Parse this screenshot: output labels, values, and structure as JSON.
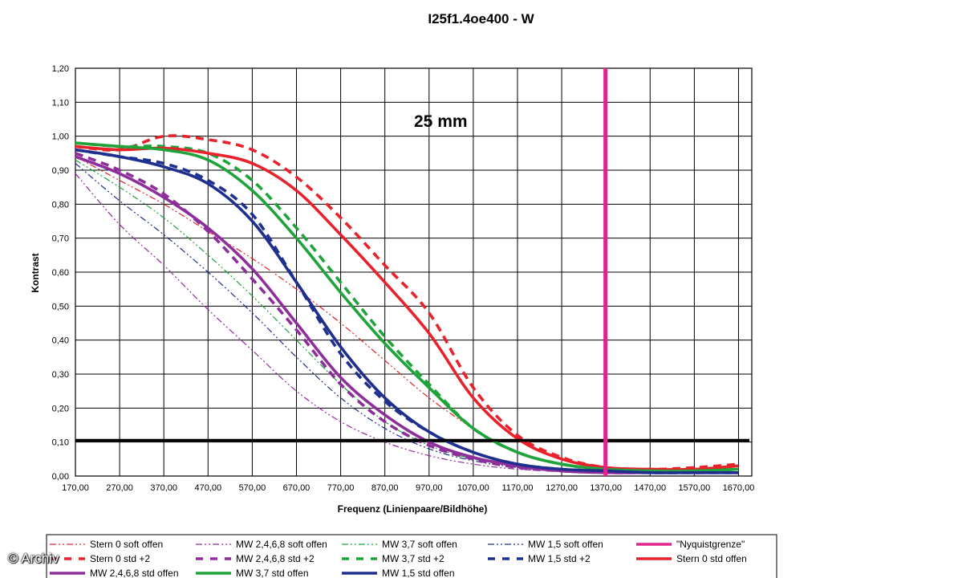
{
  "chart_data": {
    "type": "line",
    "title": "I25f1.4oe400 - W",
    "annotation": "25 mm",
    "xlabel": "Frequenz (Linienpaare/Bildhöhe)",
    "ylabel": "Kontrast",
    "xlim": [
      170,
      1700
    ],
    "ylim": [
      0,
      1.2
    ],
    "x_ticks": [
      "170,00",
      "270,00",
      "370,00",
      "470,00",
      "570,00",
      "670,00",
      "770,00",
      "870,00",
      "970,00",
      "1070,00",
      "1170,00",
      "1270,00",
      "1370,00",
      "1470,00",
      "1570,00",
      "1670,00"
    ],
    "y_ticks": [
      "0,00",
      "0,10",
      "0,20",
      "0,30",
      "0,40",
      "0,50",
      "0,60",
      "0,70",
      "0,80",
      "0,90",
      "1,00",
      "1,10",
      "1,20"
    ],
    "grid": true,
    "legend_position": "bottom",
    "threshold_line": {
      "y": 0.105,
      "color": "#000000"
    },
    "nyquist_line": {
      "name": "\"Nyquistgrenze\"",
      "x": 1369,
      "color": "#e0258c"
    },
    "series": [
      {
        "name": "Stern 0 soft offen",
        "color": "#e8212b",
        "style": "dashdotdot",
        "x": [
          170,
          270,
          370,
          470,
          570,
          670,
          770,
          870,
          970,
          1070,
          1170,
          1270,
          1370,
          1470,
          1570,
          1670
        ],
        "y": [
          0.94,
          0.87,
          0.8,
          0.72,
          0.64,
          0.55,
          0.45,
          0.34,
          0.23,
          0.14,
          0.07,
          0.035,
          0.02,
          0.015,
          0.015,
          0.02
        ]
      },
      {
        "name": "MW 2,4,6,8 soft offen",
        "color": "#8e2e9b",
        "style": "dashdotdot",
        "x": [
          170,
          270,
          370,
          470,
          570,
          670,
          770,
          870,
          970,
          1070,
          1170,
          1270,
          1370,
          1470,
          1570,
          1670
        ],
        "y": [
          0.89,
          0.74,
          0.62,
          0.49,
          0.37,
          0.25,
          0.16,
          0.1,
          0.06,
          0.035,
          0.02,
          0.015,
          0.01,
          0.01,
          0.01,
          0.01
        ]
      },
      {
        "name": "MW 3,7 soft offen",
        "color": "#1fa33a",
        "style": "dashdotdot",
        "x": [
          170,
          270,
          370,
          470,
          570,
          670,
          770,
          870,
          970,
          1070,
          1170,
          1270,
          1370,
          1470,
          1570,
          1670
        ],
        "y": [
          0.93,
          0.85,
          0.76,
          0.65,
          0.53,
          0.4,
          0.27,
          0.16,
          0.09,
          0.05,
          0.03,
          0.02,
          0.015,
          0.01,
          0.01,
          0.01
        ]
      },
      {
        "name": "MW 1,5 soft offen",
        "color": "#1f2f8e",
        "style": "dashdotdot",
        "x": [
          170,
          270,
          370,
          470,
          570,
          670,
          770,
          870,
          970,
          1070,
          1170,
          1270,
          1370,
          1470,
          1570,
          1670
        ],
        "y": [
          0.92,
          0.81,
          0.71,
          0.6,
          0.48,
          0.35,
          0.23,
          0.14,
          0.08,
          0.045,
          0.025,
          0.015,
          0.01,
          0.01,
          0.01,
          0.01
        ]
      },
      {
        "name": "Stern 0 std +2",
        "color": "#e8212b",
        "style": "dash",
        "x": [
          170,
          270,
          370,
          470,
          570,
          670,
          770,
          870,
          970,
          1070,
          1170,
          1270,
          1370,
          1470,
          1570,
          1670
        ],
        "y": [
          0.97,
          0.96,
          1.0,
          0.99,
          0.96,
          0.88,
          0.76,
          0.62,
          0.48,
          0.26,
          0.12,
          0.055,
          0.025,
          0.02,
          0.025,
          0.035
        ]
      },
      {
        "name": "MW 2,4,6,8 std +2",
        "color": "#8e2e9b",
        "style": "dash",
        "x": [
          170,
          270,
          370,
          470,
          570,
          670,
          770,
          870,
          970,
          1070,
          1170,
          1270,
          1370,
          1470,
          1570,
          1670
        ],
        "y": [
          0.95,
          0.9,
          0.83,
          0.72,
          0.58,
          0.43,
          0.27,
          0.16,
          0.09,
          0.05,
          0.025,
          0.015,
          0.01,
          0.01,
          0.01,
          0.01
        ]
      },
      {
        "name": "MW 3,7 std +2",
        "color": "#1fa33a",
        "style": "dash",
        "x": [
          170,
          270,
          370,
          470,
          570,
          670,
          770,
          870,
          970,
          1070,
          1170,
          1270,
          1370,
          1470,
          1570,
          1670
        ],
        "y": [
          0.98,
          0.97,
          0.97,
          0.95,
          0.87,
          0.73,
          0.57,
          0.41,
          0.27,
          0.14,
          0.07,
          0.035,
          0.02,
          0.015,
          0.015,
          0.02
        ]
      },
      {
        "name": "MW 1,5 std +2",
        "color": "#1f2f8e",
        "style": "dash",
        "x": [
          170,
          270,
          370,
          470,
          570,
          670,
          770,
          870,
          970,
          1070,
          1170,
          1270,
          1370,
          1470,
          1570,
          1670
        ],
        "y": [
          0.96,
          0.94,
          0.92,
          0.87,
          0.77,
          0.57,
          0.36,
          0.22,
          0.13,
          0.07,
          0.035,
          0.02,
          0.015,
          0.01,
          0.01,
          0.01
        ]
      },
      {
        "name": "Stern 0 std offen",
        "color": "#e8212b",
        "style": "solid",
        "x": [
          170,
          270,
          370,
          470,
          570,
          670,
          770,
          870,
          970,
          1070,
          1170,
          1270,
          1370,
          1470,
          1570,
          1670
        ],
        "y": [
          0.97,
          0.96,
          0.965,
          0.95,
          0.92,
          0.84,
          0.71,
          0.57,
          0.42,
          0.23,
          0.11,
          0.05,
          0.025,
          0.02,
          0.02,
          0.03
        ]
      },
      {
        "name": "MW 2,4,6,8 std offen",
        "color": "#8e2e9b",
        "style": "solid",
        "x": [
          170,
          270,
          370,
          470,
          570,
          670,
          770,
          870,
          970,
          1070,
          1170,
          1270,
          1370,
          1470,
          1570,
          1670
        ],
        "y": [
          0.94,
          0.89,
          0.82,
          0.73,
          0.61,
          0.45,
          0.29,
          0.18,
          0.1,
          0.055,
          0.03,
          0.015,
          0.01,
          0.01,
          0.01,
          0.01
        ]
      },
      {
        "name": "MW 3,7 std offen",
        "color": "#1fa33a",
        "style": "solid",
        "x": [
          170,
          270,
          370,
          470,
          570,
          670,
          770,
          870,
          970,
          1070,
          1170,
          1270,
          1370,
          1470,
          1570,
          1670
        ],
        "y": [
          0.98,
          0.97,
          0.96,
          0.93,
          0.84,
          0.7,
          0.54,
          0.39,
          0.26,
          0.14,
          0.07,
          0.035,
          0.02,
          0.015,
          0.015,
          0.02
        ]
      },
      {
        "name": "MW 1,5 std offen",
        "color": "#1f2f8e",
        "style": "solid",
        "x": [
          170,
          270,
          370,
          470,
          570,
          670,
          770,
          870,
          970,
          1070,
          1170,
          1270,
          1370,
          1470,
          1570,
          1670
        ],
        "y": [
          0.96,
          0.94,
          0.91,
          0.86,
          0.75,
          0.57,
          0.38,
          0.23,
          0.13,
          0.07,
          0.035,
          0.02,
          0.015,
          0.01,
          0.01,
          0.01
        ]
      }
    ]
  },
  "legend": {
    "items": [
      {
        "label": "Stern 0 soft offen",
        "color": "#e8212b",
        "style": "dashdotdot"
      },
      {
        "label": "MW 2,4,6,8 soft offen",
        "color": "#8e2e9b",
        "style": "dashdotdot"
      },
      {
        "label": "MW 3,7 soft offen",
        "color": "#1fa33a",
        "style": "dashdotdot"
      },
      {
        "label": "MW 1,5 soft offen",
        "color": "#1f2f8e",
        "style": "dashdotdot"
      },
      {
        "label": "\"Nyquistgrenze\"",
        "color": "#e0258c",
        "style": "solid"
      },
      {
        "label": "Stern 0 std +2",
        "color": "#e8212b",
        "style": "dash"
      },
      {
        "label": "MW 2,4,6,8 std +2",
        "color": "#8e2e9b",
        "style": "dash"
      },
      {
        "label": "MW 3,7 std +2",
        "color": "#1fa33a",
        "style": "dash"
      },
      {
        "label": "MW 1,5 std +2",
        "color": "#1f2f8e",
        "style": "dash"
      },
      {
        "label": "Stern 0 std offen",
        "color": "#e8212b",
        "style": "solid"
      },
      {
        "label": "MW 2,4,6,8 std offen",
        "color": "#8e2e9b",
        "style": "solid"
      },
      {
        "label": "MW 3,7 std offen",
        "color": "#1fa33a",
        "style": "solid"
      },
      {
        "label": "MW 1,5 std offen",
        "color": "#1f2f8e",
        "style": "solid"
      }
    ]
  },
  "watermark": "© Archiv"
}
